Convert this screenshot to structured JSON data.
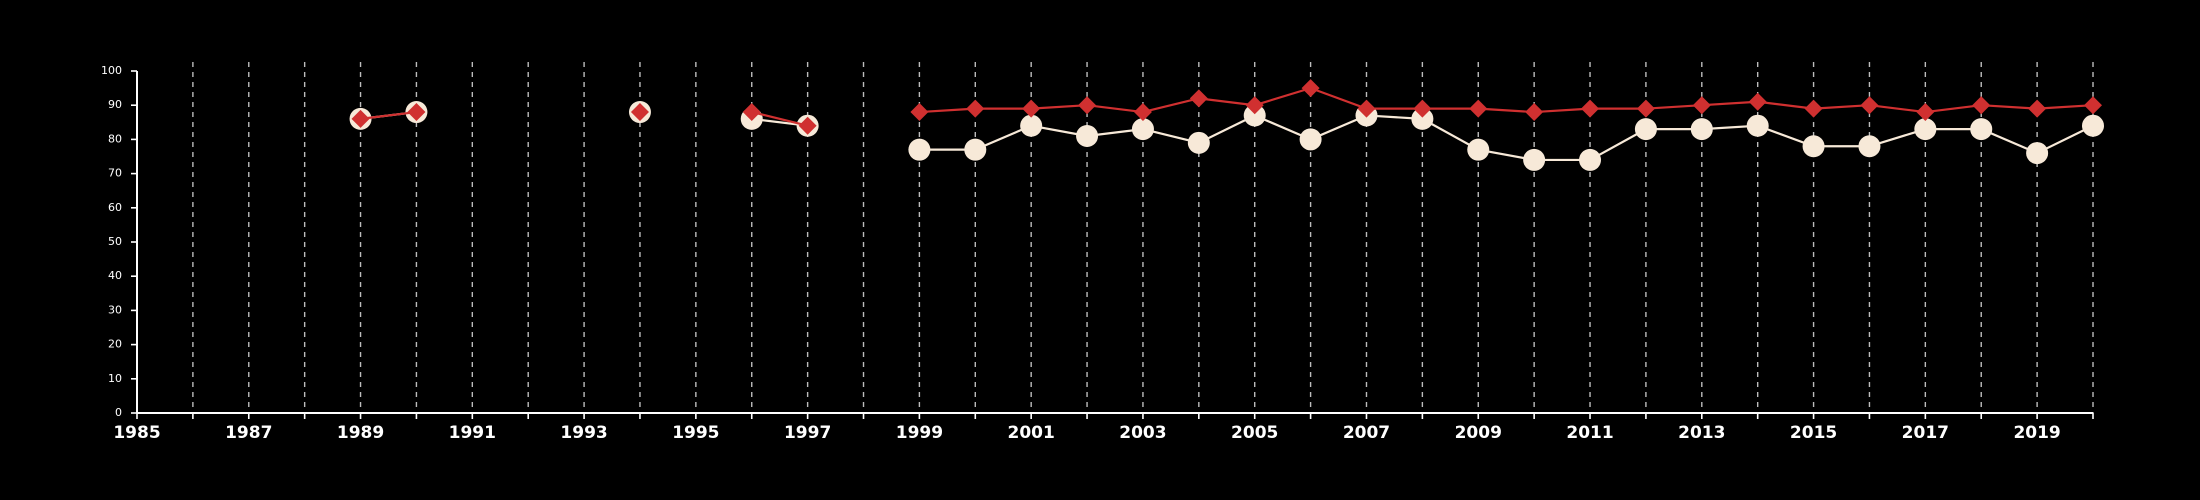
{
  "chart_data": {
    "type": "line",
    "title": "",
    "xlabel": "",
    "ylabel": "",
    "xlim": [
      1985,
      2020
    ],
    "ylim": [
      0,
      100
    ],
    "x_ticks": [
      1985,
      1987,
      1989,
      1991,
      1993,
      1995,
      1997,
      1999,
      2001,
      2003,
      2005,
      2007,
      2009,
      2011,
      2013,
      2015,
      2017,
      2019
    ],
    "y_ticks": [
      0,
      10,
      20,
      30,
      40,
      50,
      60,
      70,
      80,
      90,
      100
    ],
    "grid": "vertical dashed lines at every year",
    "legend": "none",
    "series": [
      {
        "marker": "circle",
        "color": "#f7e9d8",
        "points": [
          [
            1989,
            86
          ],
          [
            1990,
            88
          ],
          [
            1994,
            88
          ],
          [
            1996,
            86
          ],
          [
            1997,
            84
          ],
          [
            1999,
            77
          ],
          [
            2000,
            77
          ],
          [
            2001,
            84
          ],
          [
            2002,
            81
          ],
          [
            2003,
            83
          ],
          [
            2004,
            79
          ],
          [
            2005,
            87
          ],
          [
            2006,
            80
          ],
          [
            2007,
            87
          ],
          [
            2008,
            86
          ],
          [
            2009,
            77
          ],
          [
            2010,
            74
          ],
          [
            2011,
            74
          ],
          [
            2012,
            83
          ],
          [
            2013,
            83
          ],
          [
            2014,
            84
          ],
          [
            2015,
            78
          ],
          [
            2016,
            78
          ],
          [
            2017,
            83
          ],
          [
            2018,
            83
          ],
          [
            2019,
            76
          ],
          [
            2020,
            84
          ]
        ]
      },
      {
        "marker": "diamond",
        "color": "#d03030",
        "points": [
          [
            1989,
            86
          ],
          [
            1990,
            88
          ],
          [
            1994,
            88
          ],
          [
            1996,
            88
          ],
          [
            1997,
            84
          ],
          [
            1999,
            88
          ],
          [
            2000,
            89
          ],
          [
            2001,
            89
          ],
          [
            2002,
            90
          ],
          [
            2003,
            88
          ],
          [
            2004,
            92
          ],
          [
            2005,
            90
          ],
          [
            2006,
            95
          ],
          [
            2007,
            89
          ],
          [
            2008,
            89
          ],
          [
            2009,
            89
          ],
          [
            2010,
            88
          ],
          [
            2011,
            89
          ],
          [
            2012,
            89
          ],
          [
            2013,
            90
          ],
          [
            2014,
            91
          ],
          [
            2015,
            89
          ],
          [
            2016,
            90
          ],
          [
            2017,
            88
          ],
          [
            2018,
            90
          ],
          [
            2019,
            89
          ],
          [
            2020,
            90
          ]
        ]
      }
    ]
  }
}
